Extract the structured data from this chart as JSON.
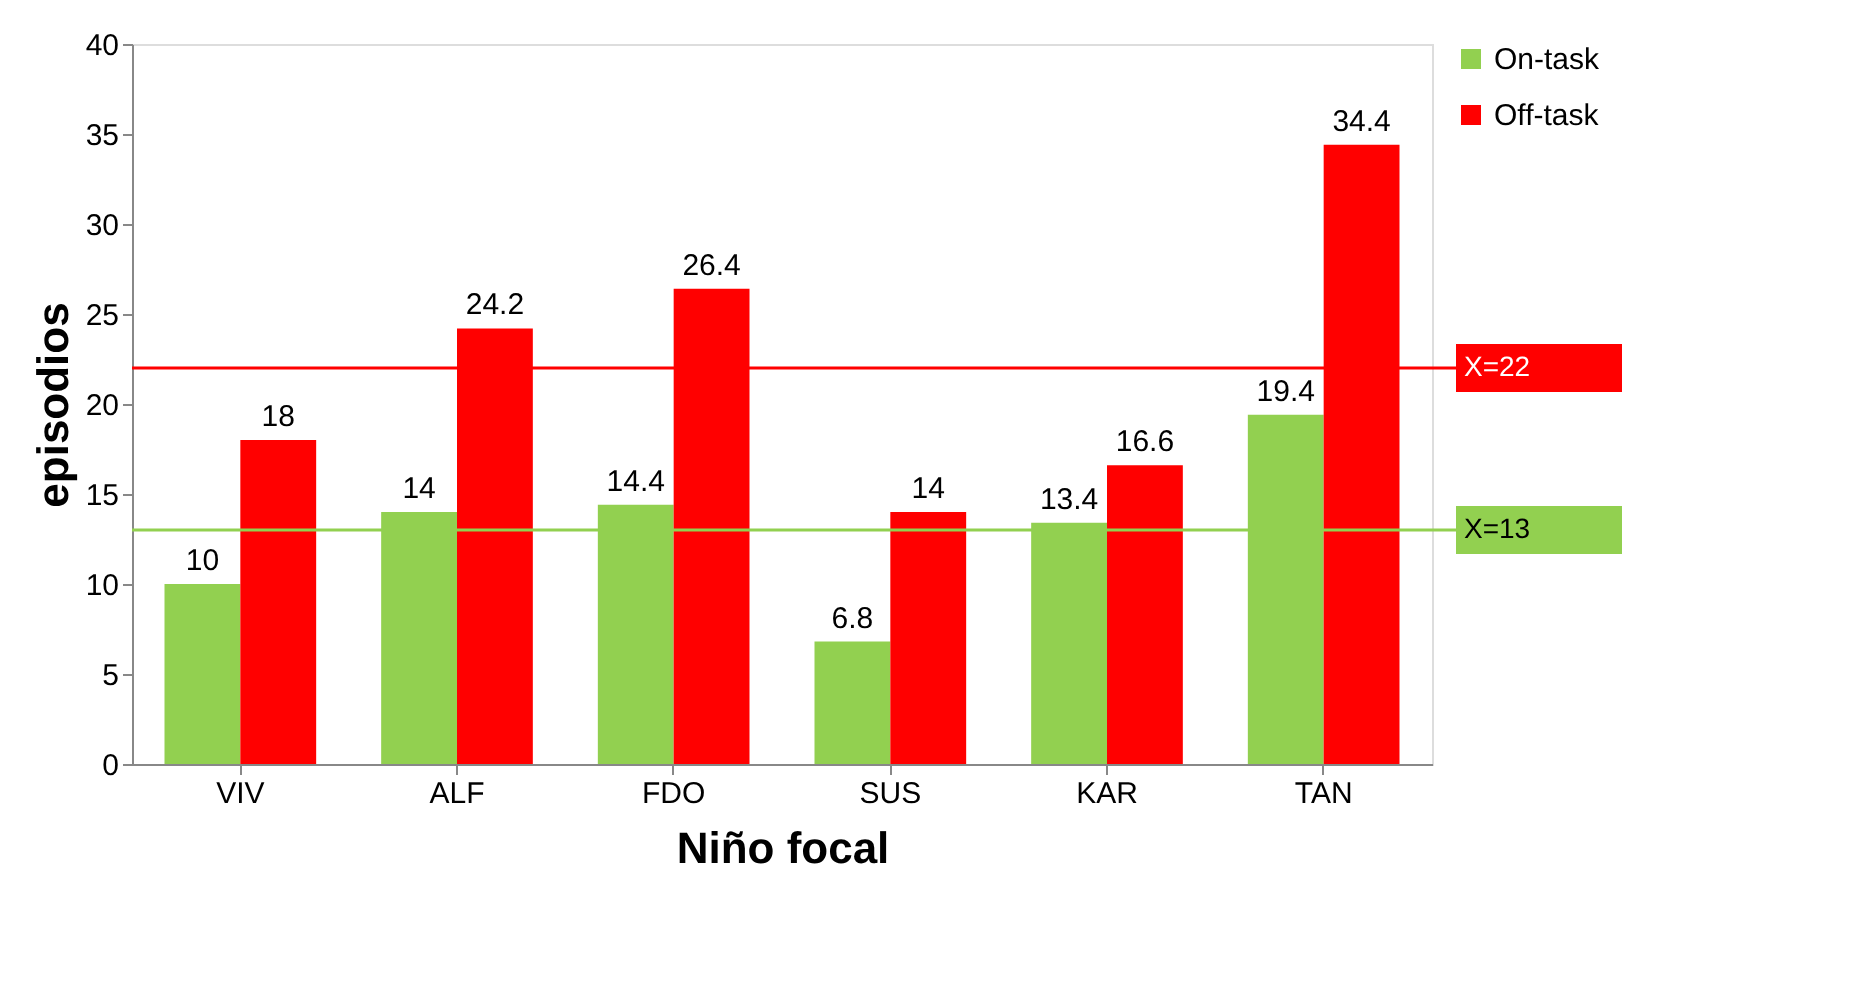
{
  "chart_data": {
    "type": "bar",
    "xlabel": "Niño focal",
    "ylabel": "episodios",
    "categories": [
      "VIV",
      "ALF",
      "FDO",
      "SUS",
      "KAR",
      "TAN"
    ],
    "series": [
      {
        "name": "On-task",
        "color": "#92d050",
        "values": [
          10,
          14,
          14.4,
          6.8,
          13.4,
          19.4
        ]
      },
      {
        "name": "Off-task",
        "color": "#ff0000",
        "values": [
          18,
          24.2,
          26.4,
          14,
          16.6,
          34.4
        ]
      }
    ],
    "ylim": [
      0,
      40
    ],
    "yticks": [
      0,
      5,
      10,
      15,
      20,
      25,
      30,
      35,
      40
    ],
    "ref_lines": [
      {
        "axis": "y",
        "value": 22,
        "label": "X=22",
        "color": "#ff0000"
      },
      {
        "axis": "y",
        "value": 13,
        "label": "X=13",
        "color": "#92d050"
      }
    ],
    "data_labels": true,
    "grid": false,
    "legend": "top right"
  }
}
